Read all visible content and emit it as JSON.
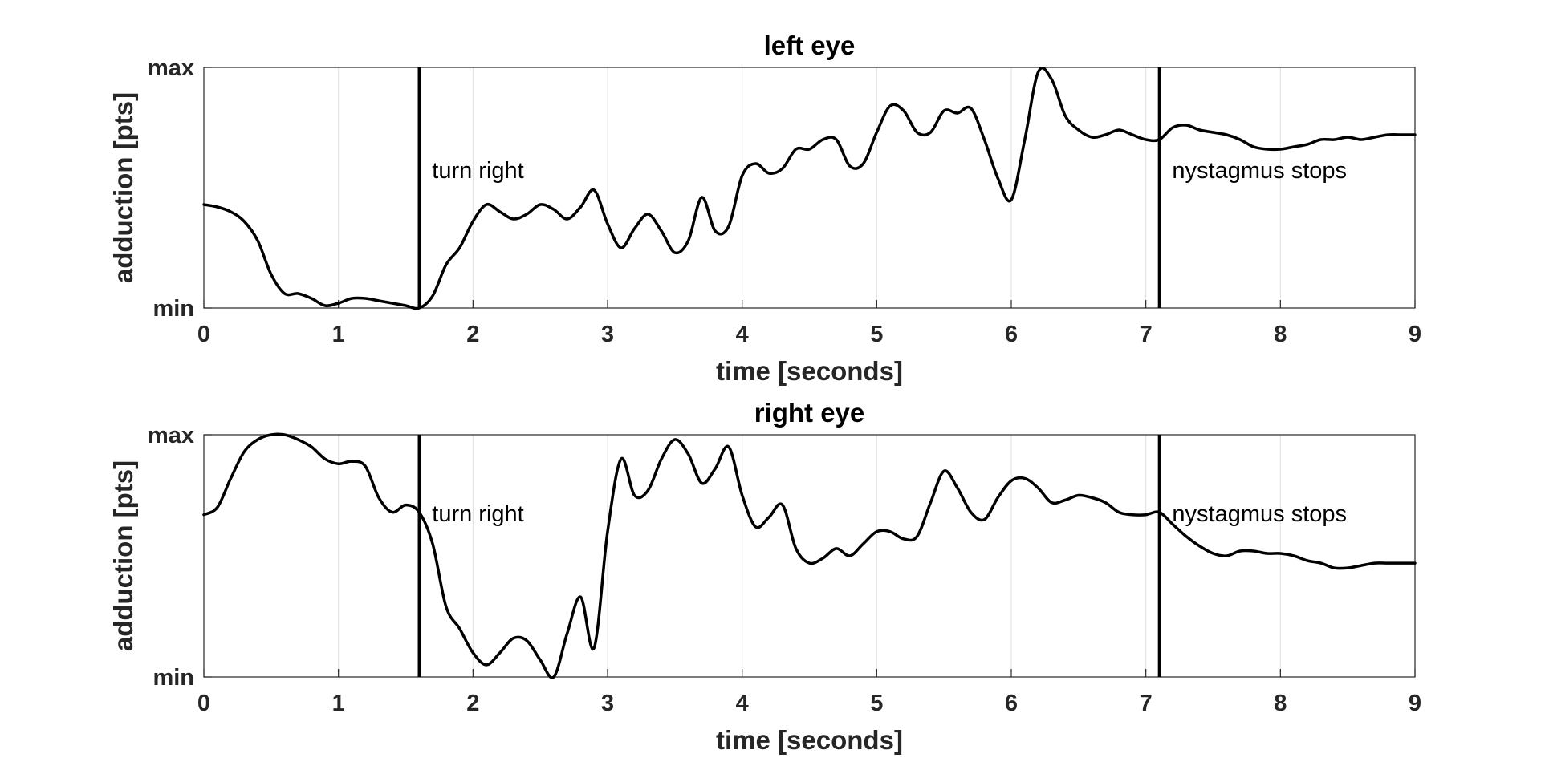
{
  "chart_data": [
    {
      "type": "line",
      "title": "left eye",
      "xlabel": "time [seconds]",
      "ylabel": "adduction [pts]",
      "xlim": [
        0,
        9
      ],
      "ylim": [
        0,
        1
      ],
      "xticks": [
        "0",
        "1",
        "2",
        "3",
        "4",
        "5",
        "6",
        "7",
        "8",
        "9"
      ],
      "yticks": [
        "min",
        "max"
      ],
      "grid": "x-only",
      "series": [
        {
          "x": [
            0,
            0.1,
            0.2,
            0.3,
            0.4,
            0.5,
            0.6,
            0.7,
            0.8,
            0.9,
            1.0,
            1.1,
            1.2,
            1.3,
            1.4,
            1.5,
            1.6,
            1.7,
            1.8,
            1.9,
            2.0,
            2.1,
            2.2,
            2.3,
            2.4,
            2.5,
            2.6,
            2.7,
            2.8,
            2.9,
            3.0,
            3.1,
            3.2,
            3.3,
            3.4,
            3.5,
            3.6,
            3.7,
            3.8,
            3.9,
            4.0,
            4.1,
            4.2,
            4.3,
            4.4,
            4.5,
            4.6,
            4.7,
            4.8,
            4.9,
            5.0,
            5.1,
            5.2,
            5.3,
            5.4,
            5.5,
            5.6,
            5.7,
            5.8,
            5.9,
            6.0,
            6.1,
            6.2,
            6.3,
            6.4,
            6.5,
            6.6,
            6.7,
            6.8,
            6.9,
            7.0,
            7.1,
            7.2,
            7.3,
            7.4,
            7.5,
            7.6,
            7.7,
            7.8,
            7.9,
            8.0,
            8.1,
            8.2,
            8.3,
            8.4,
            8.5,
            8.6,
            8.7,
            8.8,
            8.9,
            9.0
          ],
          "y": [
            0.43,
            0.42,
            0.4,
            0.36,
            0.28,
            0.14,
            0.06,
            0.06,
            0.04,
            0.01,
            0.02,
            0.04,
            0.04,
            0.03,
            0.02,
            0.01,
            0.0,
            0.05,
            0.18,
            0.25,
            0.36,
            0.43,
            0.4,
            0.37,
            0.39,
            0.43,
            0.41,
            0.37,
            0.42,
            0.49,
            0.35,
            0.25,
            0.33,
            0.39,
            0.32,
            0.23,
            0.28,
            0.46,
            0.32,
            0.34,
            0.55,
            0.6,
            0.56,
            0.58,
            0.66,
            0.66,
            0.7,
            0.7,
            0.59,
            0.6,
            0.73,
            0.84,
            0.82,
            0.73,
            0.73,
            0.82,
            0.81,
            0.83,
            0.7,
            0.54,
            0.45,
            0.7,
            0.98,
            0.95,
            0.8,
            0.74,
            0.71,
            0.72,
            0.74,
            0.72,
            0.7,
            0.7,
            0.75,
            0.76,
            0.74,
            0.73,
            0.72,
            0.7,
            0.67,
            0.66,
            0.66,
            0.67,
            0.68,
            0.7,
            0.7,
            0.71,
            0.7,
            0.71,
            0.72,
            0.72,
            0.72
          ]
        }
      ],
      "annotations": [
        {
          "x": 1.6,
          "label": "turn right"
        },
        {
          "x": 7.1,
          "label": "nystagmus stops"
        }
      ]
    },
    {
      "type": "line",
      "title": "right eye",
      "xlabel": "time [seconds]",
      "ylabel": "adduction [pts]",
      "xlim": [
        0,
        9
      ],
      "ylim": [
        0,
        1
      ],
      "xticks": [
        "0",
        "1",
        "2",
        "3",
        "4",
        "5",
        "6",
        "7",
        "8",
        "9"
      ],
      "yticks": [
        "min",
        "max"
      ],
      "grid": "x-only",
      "series": [
        {
          "x": [
            0,
            0.1,
            0.2,
            0.3,
            0.4,
            0.5,
            0.6,
            0.7,
            0.8,
            0.9,
            1.0,
            1.1,
            1.2,
            1.3,
            1.4,
            1.5,
            1.6,
            1.7,
            1.8,
            1.9,
            2.0,
            2.1,
            2.2,
            2.3,
            2.4,
            2.5,
            2.6,
            2.7,
            2.8,
            2.9,
            3.0,
            3.1,
            3.2,
            3.3,
            3.4,
            3.5,
            3.6,
            3.7,
            3.8,
            3.9,
            4.0,
            4.1,
            4.2,
            4.3,
            4.4,
            4.5,
            4.6,
            4.7,
            4.8,
            4.9,
            5.0,
            5.1,
            5.2,
            5.3,
            5.4,
            5.5,
            5.6,
            5.7,
            5.8,
            5.9,
            6.0,
            6.1,
            6.2,
            6.3,
            6.4,
            6.5,
            6.6,
            6.7,
            6.8,
            6.9,
            7.0,
            7.1,
            7.2,
            7.3,
            7.4,
            7.5,
            7.6,
            7.7,
            7.8,
            7.9,
            8.0,
            8.1,
            8.2,
            8.3,
            8.4,
            8.5,
            8.6,
            8.7,
            8.8,
            8.9,
            9.0
          ],
          "y": [
            0.67,
            0.7,
            0.82,
            0.93,
            0.98,
            1.0,
            1.0,
            0.98,
            0.95,
            0.9,
            0.88,
            0.89,
            0.87,
            0.74,
            0.68,
            0.71,
            0.68,
            0.55,
            0.29,
            0.2,
            0.1,
            0.05,
            0.1,
            0.16,
            0.15,
            0.07,
            0.0,
            0.18,
            0.33,
            0.12,
            0.6,
            0.9,
            0.75,
            0.77,
            0.9,
            0.98,
            0.92,
            0.8,
            0.86,
            0.95,
            0.75,
            0.62,
            0.66,
            0.71,
            0.53,
            0.47,
            0.49,
            0.53,
            0.5,
            0.55,
            0.6,
            0.6,
            0.57,
            0.58,
            0.72,
            0.85,
            0.78,
            0.68,
            0.65,
            0.74,
            0.81,
            0.82,
            0.78,
            0.72,
            0.73,
            0.75,
            0.74,
            0.72,
            0.68,
            0.67,
            0.67,
            0.68,
            0.63,
            0.58,
            0.54,
            0.51,
            0.5,
            0.52,
            0.52,
            0.51,
            0.51,
            0.5,
            0.48,
            0.47,
            0.45,
            0.45,
            0.46,
            0.47,
            0.47,
            0.47,
            0.47
          ]
        }
      ],
      "annotations": [
        {
          "x": 1.6,
          "label": "turn right"
        },
        {
          "x": 7.1,
          "label": "nystagmus stops"
        }
      ]
    }
  ]
}
